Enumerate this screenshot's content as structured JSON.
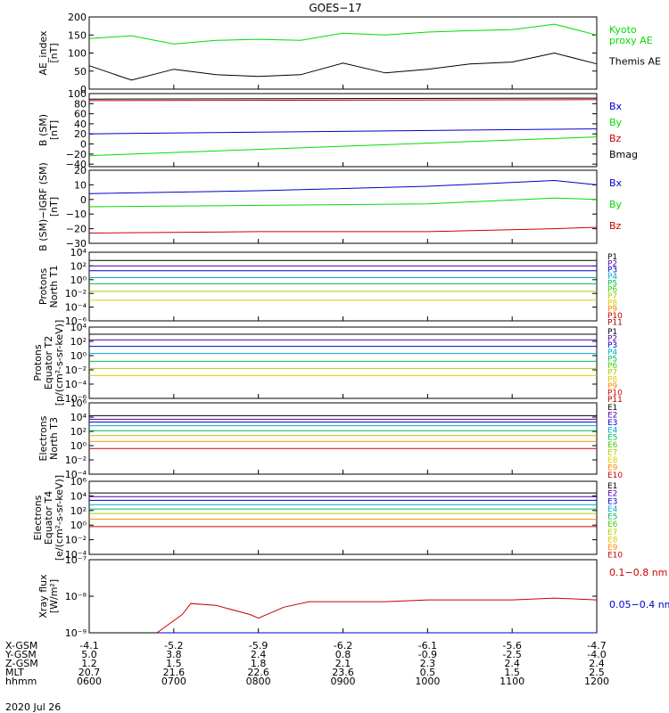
{
  "title": "GOES−17",
  "date_label": "2020 Jul 26",
  "time_ticks": [
    "0600",
    "0700",
    "0800",
    "0900",
    "1000",
    "1100",
    "1200"
  ],
  "ephemeris": [
    {
      "label": "X-GSM",
      "values": [
        "-4.1",
        "-5.2",
        "-5.9",
        "-6.2",
        "-6.1",
        "-5.6",
        "-4.7"
      ]
    },
    {
      "label": "Y-GSM",
      "values": [
        "5.0",
        "3.8",
        "2.4",
        "0.8",
        "-0.9",
        "-2.5",
        "-4.0"
      ]
    },
    {
      "label": "Z-GSM",
      "values": [
        "1.2",
        "1.5",
        "1.8",
        "2.1",
        "2.3",
        "2.4",
        "2.4"
      ]
    },
    {
      "label": "MLT",
      "values": [
        "20.7",
        "21.6",
        "22.6",
        "23.6",
        "0.5",
        "1.5",
        "2.5"
      ]
    },
    {
      "label": "hhmm",
      "values": [
        "0600",
        "0700",
        "0800",
        "0900",
        "1000",
        "1100",
        "1200"
      ]
    }
  ],
  "colors": {
    "black": "#000000",
    "green": "#00dd00",
    "blue": "#0000cc",
    "red": "#cc0000",
    "lightgreen": "#33ee33"
  },
  "chart_data": [
    {
      "type": "line",
      "ylabel": "AE_index\n[nT]",
      "ylim": [
        0,
        200
      ],
      "yticks": [
        "0",
        "50",
        "100",
        "150",
        "200"
      ],
      "x_hours": [
        6,
        6.5,
        7,
        7.5,
        8,
        8.5,
        9,
        9.5,
        10,
        10.5,
        11,
        11.5,
        12
      ],
      "series": [
        {
          "name": "Kyoto\nproxy AE",
          "color": "#00dd00",
          "values": [
            140,
            148,
            125,
            135,
            138,
            135,
            155,
            150,
            158,
            162,
            165,
            180,
            150
          ]
        },
        {
          "name": "Themis AE",
          "color": "#000000",
          "values": [
            65,
            25,
            55,
            40,
            35,
            40,
            72,
            45,
            55,
            70,
            75,
            100,
            70
          ]
        }
      ]
    },
    {
      "type": "line",
      "ylabel": "B (SM)\n[nT]",
      "ylim": [
        -45,
        100
      ],
      "yticks": [
        "−40",
        "−20",
        "0",
        "20",
        "40",
        "60",
        "80",
        "100"
      ],
      "x_hours": [
        6,
        12
      ],
      "series": [
        {
          "name": "Bx",
          "color": "#0000cc",
          "values": [
            20,
            30
          ]
        },
        {
          "name": "By",
          "color": "#00dd00",
          "values": [
            -23,
            14
          ]
        },
        {
          "name": "Bz",
          "color": "#cc0000",
          "values": [
            86,
            88
          ]
        },
        {
          "name": "Bmag",
          "color": "#000000",
          "values": [
            89,
            91
          ]
        }
      ]
    },
    {
      "type": "line",
      "ylabel": "B (SM)−IGRF (SM)\n[nT]",
      "ylim": [
        -30,
        20
      ],
      "yticks": [
        "−30",
        "−20",
        "−10",
        "0",
        "10",
        "20"
      ],
      "x_hours": [
        6,
        8,
        10,
        11.5,
        12
      ],
      "series": [
        {
          "name": "Bx",
          "color": "#0000cc",
          "values": [
            4,
            6,
            9,
            13,
            10
          ]
        },
        {
          "name": "By",
          "color": "#00dd00",
          "values": [
            -5,
            -4,
            -3,
            1,
            0
          ]
        },
        {
          "name": "Bz",
          "color": "#cc0000",
          "values": [
            -23,
            -22,
            -22,
            -20,
            -19
          ]
        }
      ]
    },
    {
      "type": "line",
      "ylabel": "Protons\nNorth T1",
      "log": true,
      "ylim": [
        -6,
        4
      ],
      "yticks": [
        "10⁴",
        "10²",
        "10⁰",
        "10⁻²",
        "10⁻⁴",
        "10⁻⁶"
      ],
      "channels": [
        "P1",
        "P2",
        "P3",
        "P4",
        "P5",
        "P6",
        "P7",
        "P8",
        "P9",
        "P10",
        "P11"
      ],
      "series": [
        {
          "name": "P1",
          "color": "#000000",
          "values": [
            2.8
          ]
        },
        {
          "name": "P2",
          "color": "#5500aa",
          "values": [
            2.0
          ]
        },
        {
          "name": "P3",
          "color": "#0000cc",
          "values": [
            1.3
          ]
        },
        {
          "name": "P4",
          "color": "#00aacc",
          "values": [
            0.3
          ]
        },
        {
          "name": "P5",
          "color": "#00bb55",
          "values": [
            -0.6
          ]
        },
        {
          "name": "P6",
          "color": "#aacc00",
          "values": [
            -1.7
          ]
        },
        {
          "name": "P7",
          "color": "#ddcc00",
          "values": [
            -3.0
          ]
        }
      ]
    },
    {
      "type": "line",
      "ylabel": "Protons\nEquator T2\n[p/(cm²-s-sr-keV)]",
      "log": true,
      "ylim": [
        -6,
        4
      ],
      "yticks": [
        "10⁴",
        "10²",
        "10⁰",
        "10⁻²",
        "10⁻⁴",
        "10⁻⁶"
      ],
      "channels": [
        "P1",
        "P2",
        "P3",
        "P4",
        "P5",
        "P6",
        "P7",
        "P8",
        "P9",
        "P10",
        "P11"
      ],
      "series": [
        {
          "name": "P1",
          "color": "#000000",
          "values": [
            3.0
          ]
        },
        {
          "name": "P2",
          "color": "#5500aa",
          "values": [
            2.2
          ]
        },
        {
          "name": "P3",
          "color": "#0000cc",
          "values": [
            1.3
          ]
        },
        {
          "name": "P4",
          "color": "#00aacc",
          "values": [
            0.3
          ]
        },
        {
          "name": "P5",
          "color": "#00bb55",
          "values": [
            -0.8
          ]
        },
        {
          "name": "P6",
          "color": "#aacc00",
          "values": [
            -1.8
          ]
        },
        {
          "name": "P7",
          "color": "#ddcc00",
          "values": [
            -2.8
          ]
        }
      ]
    },
    {
      "type": "line",
      "ylabel": "Electrons\nNorth T3",
      "log": true,
      "ylim": [
        -4,
        6
      ],
      "yticks": [
        "10⁶",
        "10⁴",
        "10²",
        "10⁰",
        "10⁻²",
        "10⁻⁴"
      ],
      "channels": [
        "E1",
        "E2",
        "E3",
        "E4",
        "E5",
        "E6",
        "E7",
        "E8",
        "E9",
        "E10"
      ],
      "series": [
        {
          "name": "E1",
          "color": "#000000",
          "values": [
            4.2
          ]
        },
        {
          "name": "E2",
          "color": "#5500aa",
          "values": [
            3.7
          ]
        },
        {
          "name": "E3",
          "color": "#0000cc",
          "values": [
            3.3
          ]
        },
        {
          "name": "E4",
          "color": "#00aacc",
          "values": [
            2.8
          ]
        },
        {
          "name": "E5",
          "color": "#00bb55",
          "values": [
            2.1
          ]
        },
        {
          "name": "E6",
          "color": "#aacc00",
          "values": [
            1.4
          ]
        },
        {
          "name": "E7",
          "color": "#ff8800",
          "values": [
            0.6
          ]
        },
        {
          "name": "E8",
          "color": "#cc0000",
          "values": [
            -0.4
          ]
        }
      ]
    },
    {
      "type": "line",
      "ylabel": "Electrons\nEquator T4\n[e/(cm²-s-sr-keV)]",
      "log": true,
      "ylim": [
        -4,
        6
      ],
      "yticks": [
        "10⁶",
        "10⁴",
        "10²",
        "10⁰",
        "10⁻²",
        "10⁻⁴"
      ],
      "channels": [
        "E1",
        "E2",
        "E3",
        "E4",
        "E5",
        "E6",
        "E7",
        "E8",
        "E9",
        "E10"
      ],
      "series": [
        {
          "name": "E1",
          "color": "#000000",
          "values": [
            4.4
          ]
        },
        {
          "name": "E2",
          "color": "#5500aa",
          "values": [
            3.9
          ]
        },
        {
          "name": "E3",
          "color": "#0000cc",
          "values": [
            3.4
          ]
        },
        {
          "name": "E4",
          "color": "#00aacc",
          "values": [
            2.8
          ]
        },
        {
          "name": "E5",
          "color": "#00bb55",
          "values": [
            2.2
          ]
        },
        {
          "name": "E6",
          "color": "#aacc00",
          "values": [
            1.6
          ]
        },
        {
          "name": "E7",
          "color": "#ff8800",
          "values": [
            0.8
          ]
        },
        {
          "name": "E8",
          "color": "#cc0000",
          "values": [
            -0.2
          ]
        }
      ]
    },
    {
      "type": "line",
      "ylabel": "Xray flux\n[W/m²]",
      "log": true,
      "ylim": [
        -9,
        -7
      ],
      "yticks": [
        "10⁻⁷",
        "10⁻⁸",
        "10⁻⁹"
      ],
      "x_hours": [
        6.8,
        7.1,
        7.2,
        7.5,
        7.9,
        8.0,
        8.3,
        8.6,
        9,
        9.5,
        10,
        10.5,
        11,
        11.5,
        12
      ],
      "series": [
        {
          "name": "0.1−0.8 nm",
          "color": "#cc0000",
          "values": [
            -9.0,
            -8.5,
            -8.2,
            -8.25,
            -8.5,
            -8.6,
            -8.3,
            -8.15,
            -8.15,
            -8.15,
            -8.1,
            -8.1,
            -8.1,
            -8.05,
            -8.1
          ]
        },
        {
          "name": "0.05−0.4 nm",
          "color": "#0000cc",
          "values": [
            -9,
            -9,
            -9,
            -9,
            -9,
            -9,
            -9,
            -9,
            -9,
            -9,
            -9,
            -9,
            -9,
            -9,
            -9
          ]
        }
      ]
    }
  ]
}
